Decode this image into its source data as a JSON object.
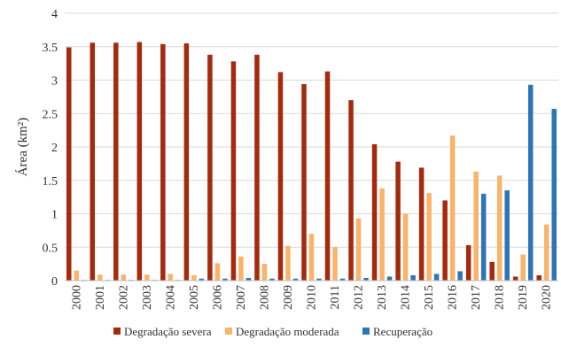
{
  "chart_data": {
    "type": "bar",
    "title": "",
    "xlabel": "",
    "ylabel": "Área (km²)",
    "ylim": [
      0,
      4
    ],
    "yticks": [
      "0",
      "0.5",
      "1",
      "1.5",
      "2",
      "2.5",
      "3",
      "3.5",
      "4"
    ],
    "grid": true,
    "legend_position": "bottom",
    "categories": [
      "2000",
      "2001",
      "2002",
      "2003",
      "2004",
      "2005",
      "2006",
      "2007",
      "2008",
      "2009",
      "2010",
      "2011",
      "2012",
      "2013",
      "2014",
      "2015",
      "2016",
      "2017",
      "2018",
      "2019",
      "2020"
    ],
    "series": [
      {
        "name": "Degradação severa",
        "color": "#A52A0D",
        "values": [
          3.49,
          3.56,
          3.56,
          3.57,
          3.54,
          3.55,
          3.38,
          3.28,
          3.38,
          3.12,
          2.94,
          3.13,
          2.7,
          2.04,
          1.78,
          1.69,
          1.2,
          0.53,
          0.28,
          0.06,
          0.08
        ]
      },
      {
        "name": "Degradação moderada",
        "color": "#FAB36A",
        "values": [
          0.15,
          0.09,
          0.09,
          0.09,
          0.1,
          0.08,
          0.26,
          0.36,
          0.25,
          0.52,
          0.7,
          0.5,
          0.93,
          1.38,
          1.0,
          1.31,
          2.17,
          1.63,
          1.57,
          0.39,
          0.84
        ]
      },
      {
        "name": "Recuperação",
        "color": "#2E75B6",
        "values": [
          0.01,
          0.01,
          0.01,
          0.01,
          0.01,
          0.03,
          0.03,
          0.04,
          0.03,
          0.03,
          0.03,
          0.03,
          0.04,
          0.06,
          0.08,
          0.1,
          0.14,
          1.3,
          1.35,
          2.93,
          2.57
        ]
      }
    ]
  }
}
